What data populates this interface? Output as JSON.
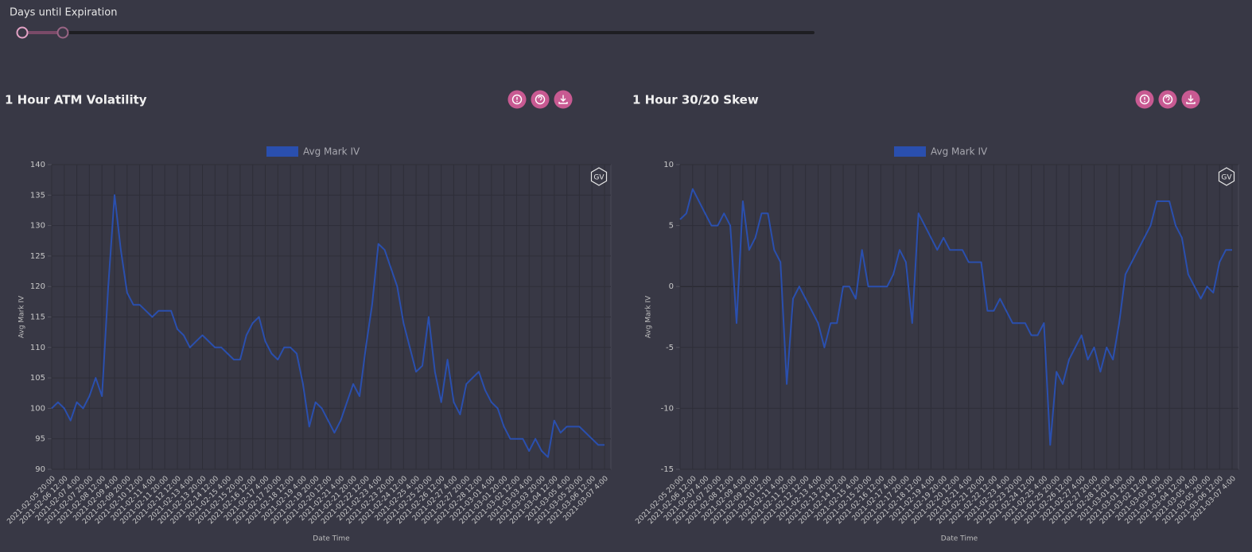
{
  "slider": {
    "label": "Days until Expiration"
  },
  "chart_data": [
    {
      "type": "line",
      "title": "1 Hour ATM Volatility",
      "ylabel": "Avg Mark IV",
      "xlabel": "Date Time",
      "watermark": "GV",
      "grid": true,
      "ylim": [
        90,
        140
      ],
      "yticks": [
        90,
        95,
        100,
        105,
        110,
        115,
        120,
        125,
        130,
        135,
        140
      ],
      "categories": [
        "2021-02-05 20:00",
        null,
        "2021-02-06 12:00",
        null,
        "2021-02-07 4:00",
        null,
        "2021-02-07 20:00",
        null,
        "2021-02-08 12:00",
        null,
        "2021-02-09 4:00",
        null,
        "2021-02-09 20:00",
        null,
        "2021-02-10 12:00",
        null,
        "2021-02-11 4:00",
        null,
        "2021-02-11 20:00",
        null,
        "2021-02-12 12:00",
        null,
        "2021-02-13 4:00",
        null,
        "2021-02-13 20:00",
        null,
        "2021-02-14 12:00",
        null,
        "2021-02-15 4:00",
        null,
        "2021-02-15 20:00",
        null,
        "2021-02-16 12:00",
        null,
        "2021-02-17 4:00",
        null,
        "2021-02-17 20:00",
        null,
        "2021-02-18 12:00",
        null,
        "2021-02-19 4:00",
        null,
        "2021-02-19 20:00",
        null,
        "2021-02-20 12:00",
        null,
        "2021-02-21 4:00",
        null,
        "2021-02-21 20:00",
        null,
        "2021-02-22 12:00",
        null,
        "2021-02-23 4:00",
        null,
        "2021-02-23 20:00",
        null,
        "2021-02-24 12:00",
        null,
        "2021-02-25 4:00",
        null,
        "2021-02-25 20:00",
        null,
        "2021-02-26 12:00",
        null,
        "2021-02-27 4:00",
        null,
        "2021-02-27 20:00",
        null,
        "2021-02-28 12:00",
        null,
        "2021-03-01 4:00",
        null,
        "2021-03-01 20:00",
        null,
        "2021-03-02 12:00",
        null,
        "2021-03-03 4:00",
        null,
        "2021-03-03 20:00",
        null,
        "2021-03-04 12:00",
        null,
        "2021-03-05 4:00",
        null,
        "2021-03-05 20:00",
        null,
        "2021-03-06 12:00",
        null,
        "2021-03-07 4:00"
      ],
      "series": [
        {
          "name": "Avg Mark IV",
          "color": "#2a4fae",
          "values": [
            100,
            101,
            100,
            98,
            101,
            100,
            102,
            105,
            102,
            120,
            135,
            126,
            119,
            117,
            117,
            116,
            115,
            116,
            116,
            116,
            113,
            112,
            110,
            111,
            112,
            111,
            110,
            110,
            109,
            108,
            108,
            112,
            114,
            115,
            111,
            109,
            108,
            110,
            110,
            109,
            104,
            97,
            101,
            100,
            98,
            96,
            98,
            101,
            104,
            102,
            110,
            117,
            127,
            126,
            123,
            120,
            114,
            110,
            106,
            107,
            115,
            106,
            101,
            108,
            101,
            99,
            104,
            105,
            106,
            103,
            101,
            100,
            97,
            95,
            95,
            95,
            93,
            95,
            93,
            92,
            98,
            96,
            97,
            97,
            97,
            96,
            95,
            94,
            94
          ]
        }
      ]
    },
    {
      "type": "line",
      "title": "1 Hour 30/20 Skew",
      "ylabel": "Avg Mark IV",
      "xlabel": "Date Time",
      "watermark": "GV",
      "grid": true,
      "ylim": [
        -15,
        10
      ],
      "yticks": [
        -15,
        -10,
        -5,
        0,
        5,
        10
      ],
      "categories": [
        "2021-02-05 20:00",
        null,
        "2021-02-06 12:00",
        null,
        "2021-02-07 4:00",
        null,
        "2021-02-07 20:00",
        null,
        "2021-02-08 12:00",
        null,
        "2021-02-09 4:00",
        null,
        "2021-02-09 20:00",
        null,
        "2021-02-10 12:00",
        null,
        "2021-02-11 4:00",
        null,
        "2021-02-11 20:00",
        null,
        "2021-02-12 12:00",
        null,
        "2021-02-13 4:00",
        null,
        "2021-02-13 20:00",
        null,
        "2021-02-14 12:00",
        null,
        "2021-02-15 4:00",
        null,
        "2021-02-15 20:00",
        null,
        "2021-02-16 12:00",
        null,
        "2021-02-17 4:00",
        null,
        "2021-02-17 20:00",
        null,
        "2021-02-18 12:00",
        null,
        "2021-02-19 4:00",
        null,
        "2021-02-19 20:00",
        null,
        "2021-02-20 12:00",
        null,
        "2021-02-21 4:00",
        null,
        "2021-02-21 20:00",
        null,
        "2021-02-22 12:00",
        null,
        "2021-02-23 4:00",
        null,
        "2021-02-23 20:00",
        null,
        "2021-02-24 12:00",
        null,
        "2021-02-25 4:00",
        null,
        "2021-02-25 20:00",
        null,
        "2021-02-26 12:00",
        null,
        "2021-02-27 4:00",
        null,
        "2021-02-27 20:00",
        null,
        "2021-02-28 12:00",
        null,
        "2021-03-01 4:00",
        null,
        "2021-03-01 20:00",
        null,
        "2021-03-02 12:00",
        null,
        "2021-03-03 4:00",
        null,
        "2021-03-03 20:00",
        null,
        "2021-03-04 12:00",
        null,
        "2021-03-05 4:00",
        null,
        "2021-03-05 20:00",
        null,
        "2021-03-06 12:00",
        null,
        "2021-03-07 4:00"
      ],
      "series": [
        {
          "name": "Avg Mark IV",
          "color": "#2a4fae",
          "values": [
            5.5,
            6,
            8,
            7,
            6,
            5,
            5,
            6,
            5,
            -3,
            7,
            3,
            4,
            6,
            6,
            3,
            2,
            -8,
            -1,
            0,
            -1,
            -2,
            -3,
            -5,
            -3,
            -3,
            0,
            0,
            -1,
            3,
            0,
            0,
            0,
            0,
            1,
            3,
            2,
            -3,
            6,
            5,
            4,
            3,
            4,
            3,
            3,
            3,
            2,
            2,
            2,
            -2,
            -2,
            -1,
            -2,
            -3,
            -3,
            -3,
            -4,
            -4,
            -3,
            -13,
            -7,
            -8,
            -6,
            -5,
            -4,
            -6,
            -5,
            -7,
            -5,
            -6,
            -3,
            1,
            2,
            3,
            4,
            5,
            7,
            7,
            7,
            5,
            4,
            1,
            0,
            -1,
            0,
            -0.5,
            2,
            3,
            3
          ]
        }
      ]
    }
  ]
}
